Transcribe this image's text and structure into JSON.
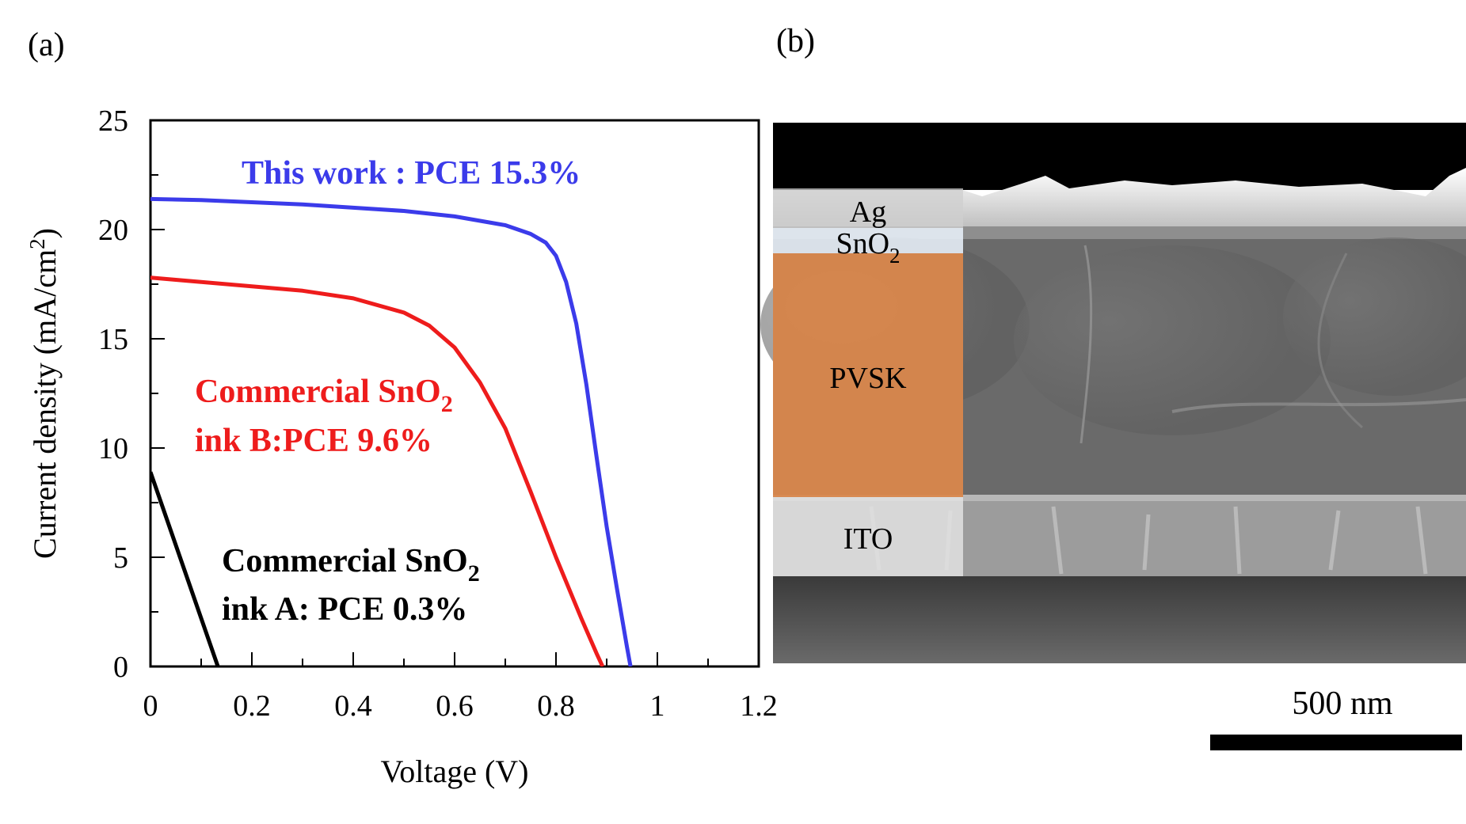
{
  "panels": {
    "a": "(a)",
    "b": "(b)"
  },
  "chart_data": {
    "type": "line",
    "title": "",
    "xlabel": "Voltage (V)",
    "ylabel_main": "Current density (mA/cm",
    "ylabel_sup": "2",
    "ylabel_close": ")",
    "xlim": [
      0,
      1.2
    ],
    "ylim": [
      0,
      25
    ],
    "xticks": [
      0,
      0.2,
      0.4,
      0.6,
      0.8,
      1,
      1.2
    ],
    "xtick_labels": [
      "0",
      "0.2",
      "0.4",
      "0.6",
      "0.8",
      "1",
      "1.2"
    ],
    "yticks": [
      0,
      5,
      10,
      15,
      20,
      25
    ],
    "ytick_labels": [
      "0",
      "5",
      "10",
      "15",
      "20",
      "25"
    ],
    "grid": false,
    "series": [
      {
        "color": "#3b3bea",
        "label_line1": "This work : PCE 15.3%",
        "x": [
          0,
          0.1,
          0.2,
          0.3,
          0.4,
          0.5,
          0.6,
          0.7,
          0.75,
          0.78,
          0.8,
          0.82,
          0.84,
          0.86,
          0.88,
          0.9,
          0.92,
          0.94,
          0.947
        ],
        "y": [
          21.4,
          21.35,
          21.25,
          21.15,
          21.0,
          20.85,
          20.6,
          20.2,
          19.8,
          19.4,
          18.8,
          17.6,
          15.7,
          12.9,
          9.6,
          6.4,
          3.6,
          0.9,
          0
        ]
      },
      {
        "color": "#ee1c1c",
        "label_line1_main": "Commercial SnO",
        "label_line1_sub": "2",
        "label_line2": "ink B:PCE 9.6%",
        "x": [
          0,
          0.1,
          0.2,
          0.3,
          0.4,
          0.5,
          0.55,
          0.6,
          0.65,
          0.7,
          0.75,
          0.8,
          0.85,
          0.88,
          0.892
        ],
        "y": [
          17.8,
          17.6,
          17.4,
          17.2,
          16.85,
          16.2,
          15.6,
          14.6,
          13.0,
          10.9,
          8.0,
          5.0,
          2.2,
          0.6,
          0
        ]
      },
      {
        "color": "#000000",
        "label_line1_main": "Commercial SnO",
        "label_line1_sub": "2",
        "label_line2": "ink A: PCE 0.3%",
        "x": [
          0,
          0.133
        ],
        "y": [
          8.9,
          0
        ]
      }
    ]
  },
  "sem": {
    "layers": {
      "ag": "Ag",
      "sno2_main": "SnO",
      "sno2_sub": "2",
      "pvsk": "PVSK",
      "ito": "ITO"
    },
    "scale_bar": "500 nm"
  }
}
